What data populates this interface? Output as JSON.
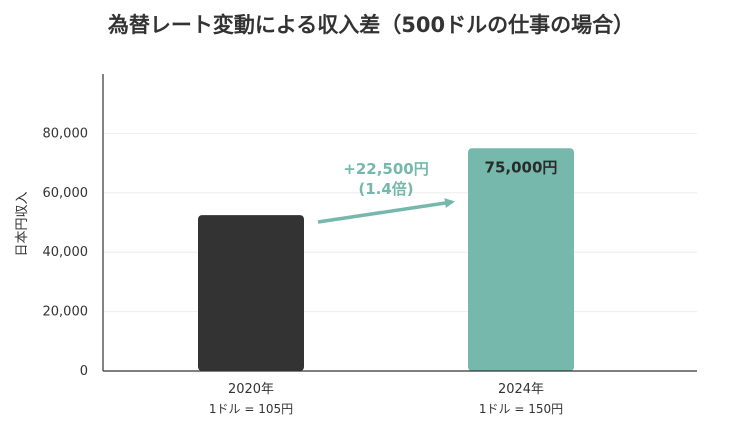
{
  "colors": {
    "bar_2020": "#333333",
    "bar_2024": "#76b8ac",
    "annotation": "#76b8ac",
    "axis": "#333333",
    "grid": "#eeeeee"
  },
  "chart_data": {
    "type": "bar",
    "title": "為替レート変動による収入差（500ドルの仕事の場合）",
    "xlabel": "",
    "ylabel": "日本円収入",
    "ylim": [
      0,
      100000
    ],
    "y_ticks": [
      "0",
      "20,000",
      "40,000",
      "60,000",
      "80,000"
    ],
    "y_tick_values": [
      0,
      20000,
      40000,
      60000,
      80000
    ],
    "grid": true,
    "categories": [
      "2020年",
      "2024年"
    ],
    "category_notes": [
      "1ドル = 105円",
      "1ドル = 150円"
    ],
    "values": [
      52500,
      75000
    ],
    "data_labels": [
      "",
      "75,000円"
    ],
    "annotation": {
      "line1": "+22,500円",
      "line2": "(1.4倍)"
    }
  }
}
